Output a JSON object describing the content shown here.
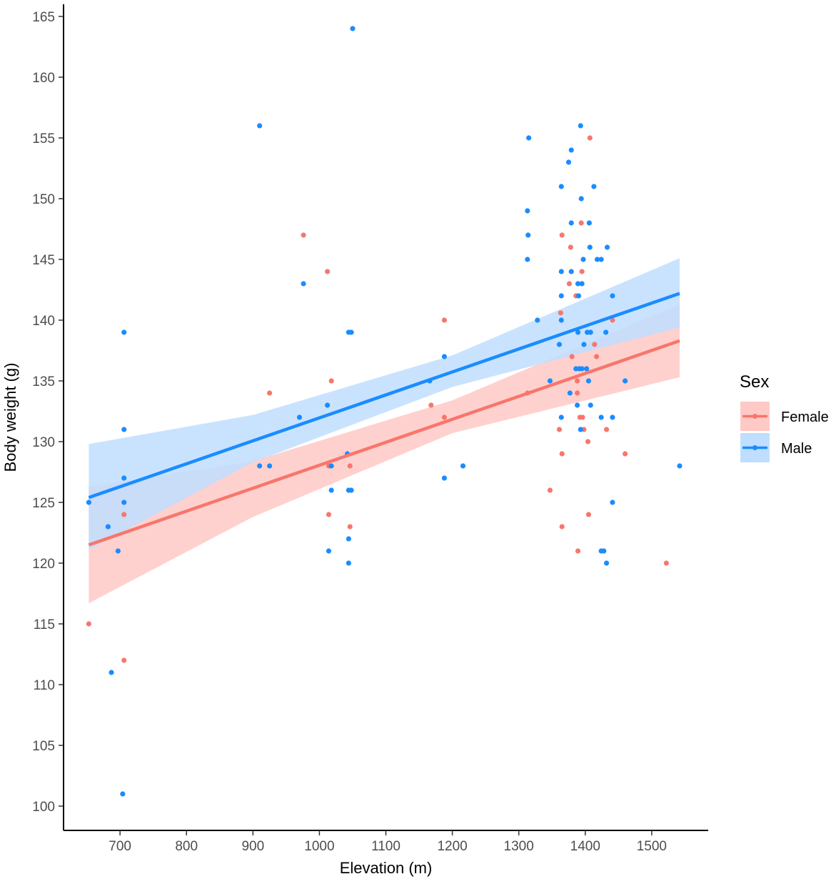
{
  "chart_data": {
    "type": "scatter",
    "title": "",
    "xlabel": "Elevation (m)",
    "ylabel": "Body weight (g)",
    "xlim": [
      615,
      1585
    ],
    "ylim": [
      98,
      166
    ],
    "x_ticks": [
      700,
      800,
      900,
      1000,
      1100,
      1200,
      1300,
      1400,
      1500
    ],
    "y_ticks": [
      100,
      105,
      110,
      115,
      120,
      125,
      130,
      135,
      140,
      145,
      150,
      155,
      160,
      165
    ],
    "grid": false,
    "legend": {
      "title": "Sex",
      "position": "right"
    },
    "series": [
      {
        "name": "Female",
        "color": "#F8766D",
        "fill": "#FFC9C6",
        "fit": {
          "x": [
            653,
            1542
          ],
          "y": [
            121.5,
            138.3
          ]
        },
        "band": {
          "x": [
            653,
            900,
            1200,
            1542
          ],
          "lower": [
            116.7,
            123.8,
            130.7,
            135.3
          ],
          "upper": [
            126.3,
            128.4,
            133.4,
            141.3
          ]
        },
        "points": [
          {
            "x": 653,
            "y": 115
          },
          {
            "x": 706,
            "y": 124
          },
          {
            "x": 706,
            "y": 112
          },
          {
            "x": 925,
            "y": 134
          },
          {
            "x": 976,
            "y": 147
          },
          {
            "x": 1012,
            "y": 144
          },
          {
            "x": 1014,
            "y": 128
          },
          {
            "x": 1014,
            "y": 124
          },
          {
            "x": 1018,
            "y": 135
          },
          {
            "x": 1046,
            "y": 128
          },
          {
            "x": 1046,
            "y": 123
          },
          {
            "x": 1168,
            "y": 133
          },
          {
            "x": 1188,
            "y": 140
          },
          {
            "x": 1188,
            "y": 132
          },
          {
            "x": 1313,
            "y": 134
          },
          {
            "x": 1347,
            "y": 126
          },
          {
            "x": 1361,
            "y": 131
          },
          {
            "x": 1363,
            "y": 140.6
          },
          {
            "x": 1365,
            "y": 147
          },
          {
            "x": 1365,
            "y": 129
          },
          {
            "x": 1365,
            "y": 123
          },
          {
            "x": 1376,
            "y": 143
          },
          {
            "x": 1378,
            "y": 146
          },
          {
            "x": 1380,
            "y": 137
          },
          {
            "x": 1386,
            "y": 142
          },
          {
            "x": 1388,
            "y": 135
          },
          {
            "x": 1388,
            "y": 134
          },
          {
            "x": 1389,
            "y": 121
          },
          {
            "x": 1392,
            "y": 132
          },
          {
            "x": 1394,
            "y": 148
          },
          {
            "x": 1395,
            "y": 144
          },
          {
            "x": 1396,
            "y": 132
          },
          {
            "x": 1398,
            "y": 131
          },
          {
            "x": 1404,
            "y": 130
          },
          {
            "x": 1405,
            "y": 124
          },
          {
            "x": 1407,
            "y": 155
          },
          {
            "x": 1414,
            "y": 138
          },
          {
            "x": 1417,
            "y": 137
          },
          {
            "x": 1432,
            "y": 131
          },
          {
            "x": 1441,
            "y": 140
          },
          {
            "x": 1460,
            "y": 129
          },
          {
            "x": 1522,
            "y": 120
          }
        ]
      },
      {
        "name": "Male",
        "color": "#1A8CFF",
        "fill": "#C0DEFF",
        "fit": {
          "x": [
            653,
            1542
          ],
          "y": [
            125.4,
            142.2
          ]
        },
        "band": {
          "x": [
            653,
            900,
            1200,
            1542
          ],
          "lower": [
            121.1,
            128.3,
            134.5,
            139.4
          ],
          "upper": [
            129.8,
            132.2,
            137.1,
            145.1
          ]
        },
        "points": [
          {
            "x": 653,
            "y": 125
          },
          {
            "x": 682,
            "y": 123
          },
          {
            "x": 687,
            "y": 111
          },
          {
            "x": 697,
            "y": 121
          },
          {
            "x": 704,
            "y": 101
          },
          {
            "x": 706,
            "y": 139
          },
          {
            "x": 706,
            "y": 131
          },
          {
            "x": 706,
            "y": 127
          },
          {
            "x": 706,
            "y": 125
          },
          {
            "x": 910,
            "y": 156
          },
          {
            "x": 910,
            "y": 128
          },
          {
            "x": 925,
            "y": 128
          },
          {
            "x": 970,
            "y": 132
          },
          {
            "x": 976,
            "y": 143
          },
          {
            "x": 1012,
            "y": 133
          },
          {
            "x": 1014,
            "y": 121
          },
          {
            "x": 1018,
            "y": 128
          },
          {
            "x": 1018,
            "y": 126
          },
          {
            "x": 1042,
            "y": 129
          },
          {
            "x": 1044,
            "y": 139
          },
          {
            "x": 1044,
            "y": 126
          },
          {
            "x": 1044,
            "y": 122
          },
          {
            "x": 1044,
            "y": 120
          },
          {
            "x": 1048,
            "y": 139
          },
          {
            "x": 1048,
            "y": 126
          },
          {
            "x": 1050,
            "y": 164
          },
          {
            "x": 1166,
            "y": 135
          },
          {
            "x": 1188,
            "y": 137
          },
          {
            "x": 1188,
            "y": 127
          },
          {
            "x": 1216,
            "y": 128
          },
          {
            "x": 1313,
            "y": 149
          },
          {
            "x": 1314,
            "y": 147
          },
          {
            "x": 1313,
            "y": 145
          },
          {
            "x": 1315,
            "y": 155
          },
          {
            "x": 1328,
            "y": 140
          },
          {
            "x": 1347,
            "y": 135
          },
          {
            "x": 1361,
            "y": 138
          },
          {
            "x": 1364,
            "y": 151
          },
          {
            "x": 1364,
            "y": 144
          },
          {
            "x": 1364,
            "y": 142
          },
          {
            "x": 1364,
            "y": 140
          },
          {
            "x": 1364,
            "y": 132
          },
          {
            "x": 1375,
            "y": 153
          },
          {
            "x": 1377,
            "y": 134
          },
          {
            "x": 1379,
            "y": 154
          },
          {
            "x": 1379,
            "y": 148
          },
          {
            "x": 1379,
            "y": 144
          },
          {
            "x": 1386,
            "y": 136
          },
          {
            "x": 1388,
            "y": 133
          },
          {
            "x": 1389,
            "y": 143
          },
          {
            "x": 1389,
            "y": 139
          },
          {
            "x": 1390,
            "y": 142
          },
          {
            "x": 1391,
            "y": 136
          },
          {
            "x": 1393,
            "y": 131
          },
          {
            "x": 1393,
            "y": 156
          },
          {
            "x": 1394,
            "y": 150
          },
          {
            "x": 1395,
            "y": 143
          },
          {
            "x": 1395,
            "y": 136
          },
          {
            "x": 1397,
            "y": 145
          },
          {
            "x": 1398,
            "y": 138
          },
          {
            "x": 1402,
            "y": 136
          },
          {
            "x": 1403,
            "y": 139
          },
          {
            "x": 1405,
            "y": 135
          },
          {
            "x": 1406,
            "y": 148
          },
          {
            "x": 1407,
            "y": 146
          },
          {
            "x": 1408,
            "y": 139
          },
          {
            "x": 1408,
            "y": 133
          },
          {
            "x": 1413,
            "y": 151
          },
          {
            "x": 1418,
            "y": 145
          },
          {
            "x": 1424,
            "y": 145
          },
          {
            "x": 1424,
            "y": 132
          },
          {
            "x": 1424,
            "y": 121
          },
          {
            "x": 1428,
            "y": 121
          },
          {
            "x": 1431,
            "y": 139
          },
          {
            "x": 1432,
            "y": 120
          },
          {
            "x": 1433,
            "y": 146
          },
          {
            "x": 1441,
            "y": 142
          },
          {
            "x": 1441,
            "y": 132
          },
          {
            "x": 1441,
            "y": 125
          },
          {
            "x": 1460,
            "y": 135
          },
          {
            "x": 1542,
            "y": 128
          }
        ]
      }
    ]
  }
}
